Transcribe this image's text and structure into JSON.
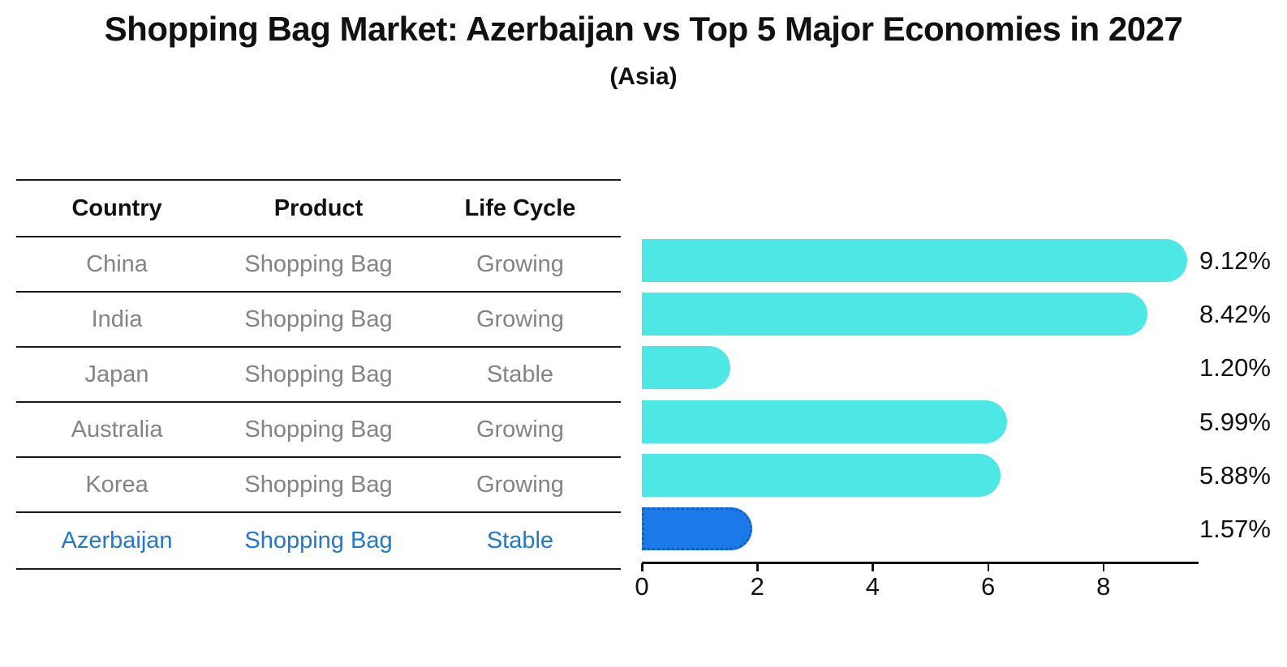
{
  "title": "Shopping Bag Market: Azerbaijan vs Top 5 Major Economies in 2027",
  "subtitle": "(Asia)",
  "colors": {
    "bar_default": "#4DE8E6",
    "bar_highlight": "#1B7AE8",
    "bar_highlight_border": "#0E5ED0",
    "highlight_text": "#2378CB",
    "row_text": "#848484",
    "header_text": "#111111",
    "axis": "#111111"
  },
  "table": {
    "headers": [
      "Country",
      "Product",
      "Life Cycle"
    ],
    "rows": [
      {
        "country": "China",
        "product": "Shopping Bag",
        "life_cycle": "Growing",
        "highlight": false
      },
      {
        "country": "India",
        "product": "Shopping Bag",
        "life_cycle": "Growing",
        "highlight": false
      },
      {
        "country": "Japan",
        "product": "Shopping Bag",
        "life_cycle": "Stable",
        "highlight": false
      },
      {
        "country": "Australia",
        "product": "Shopping Bag",
        "life_cycle": "Growing",
        "highlight": false
      },
      {
        "country": "Korea",
        "product": "Shopping Bag",
        "life_cycle": "Growing",
        "highlight": false
      },
      {
        "country": "Azerbaijan",
        "product": "Shopping Bag",
        "life_cycle": "Stable",
        "highlight": true
      }
    ]
  },
  "chart_data": {
    "type": "bar",
    "orientation": "horizontal",
    "title": "Shopping Bag Market: Azerbaijan vs Top 5 Major Economies in 2027 (Asia)",
    "categories": [
      "China",
      "India",
      "Japan",
      "Australia",
      "Korea",
      "Azerbaijan"
    ],
    "values": [
      9.12,
      8.42,
      1.2,
      5.99,
      5.88,
      1.57
    ],
    "value_labels": [
      "9.12%",
      "8.42%",
      "1.20%",
      "5.99%",
      "5.88%",
      "1.57%"
    ],
    "unit": "%",
    "highlight_category": "Azerbaijan",
    "x_ticks": [
      0,
      2,
      4,
      6,
      8
    ],
    "xlim": [
      0,
      9.65
    ],
    "grid": false,
    "legend": "none"
  }
}
